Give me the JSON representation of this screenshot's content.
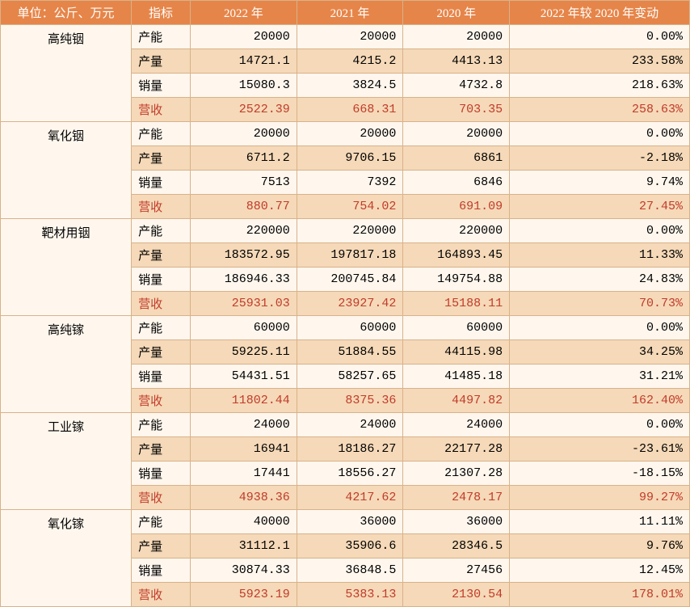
{
  "header": {
    "unit": "单位：公斤、万元",
    "metric": "指标",
    "y2022": "2022 年",
    "y2021": "2021 年",
    "y2020": "2020 年",
    "change": "2022 年较 2020 年变动"
  },
  "metrics": {
    "capacity": "产能",
    "output": "产量",
    "sales": "销量",
    "revenue": "营收"
  },
  "products": [
    {
      "name": "高纯铟",
      "rows": [
        {
          "m": "capacity",
          "v22": "20000",
          "v21": "20000",
          "v20": "20000",
          "chg": "0.00%"
        },
        {
          "m": "output",
          "v22": "14721.1",
          "v21": "4215.2",
          "v20": "4413.13",
          "chg": "233.58%"
        },
        {
          "m": "sales",
          "v22": "15080.3",
          "v21": "3824.5",
          "v20": "4732.8",
          "chg": "218.63%"
        },
        {
          "m": "revenue",
          "v22": "2522.39",
          "v21": "668.31",
          "v20": "703.35",
          "chg": "258.63%"
        }
      ]
    },
    {
      "name": "氧化铟",
      "rows": [
        {
          "m": "capacity",
          "v22": "20000",
          "v21": "20000",
          "v20": "20000",
          "chg": "0.00%"
        },
        {
          "m": "output",
          "v22": "6711.2",
          "v21": "9706.15",
          "v20": "6861",
          "chg": "-2.18%"
        },
        {
          "m": "sales",
          "v22": "7513",
          "v21": "7392",
          "v20": "6846",
          "chg": "9.74%"
        },
        {
          "m": "revenue",
          "v22": "880.77",
          "v21": "754.02",
          "v20": "691.09",
          "chg": "27.45%"
        }
      ]
    },
    {
      "name": "靶材用铟",
      "rows": [
        {
          "m": "capacity",
          "v22": "220000",
          "v21": "220000",
          "v20": "220000",
          "chg": "0.00%"
        },
        {
          "m": "output",
          "v22": "183572.95",
          "v21": "197817.18",
          "v20": "164893.45",
          "chg": "11.33%"
        },
        {
          "m": "sales",
          "v22": "186946.33",
          "v21": "200745.84",
          "v20": "149754.88",
          "chg": "24.83%"
        },
        {
          "m": "revenue",
          "v22": "25931.03",
          "v21": "23927.42",
          "v20": "15188.11",
          "chg": "70.73%"
        }
      ]
    },
    {
      "name": "高纯镓",
      "rows": [
        {
          "m": "capacity",
          "v22": "60000",
          "v21": "60000",
          "v20": "60000",
          "chg": "0.00%"
        },
        {
          "m": "output",
          "v22": "59225.11",
          "v21": "51884.55",
          "v20": "44115.98",
          "chg": "34.25%"
        },
        {
          "m": "sales",
          "v22": "54431.51",
          "v21": "58257.65",
          "v20": "41485.18",
          "chg": "31.21%"
        },
        {
          "m": "revenue",
          "v22": "11802.44",
          "v21": "8375.36",
          "v20": "4497.82",
          "chg": "162.40%"
        }
      ]
    },
    {
      "name": "工业镓",
      "rows": [
        {
          "m": "capacity",
          "v22": "24000",
          "v21": "24000",
          "v20": "24000",
          "chg": "0.00%"
        },
        {
          "m": "output",
          "v22": "16941",
          "v21": "18186.27",
          "v20": "22177.28",
          "chg": "-23.61%"
        },
        {
          "m": "sales",
          "v22": "17441",
          "v21": "18556.27",
          "v20": "21307.28",
          "chg": "-18.15%"
        },
        {
          "m": "revenue",
          "v22": "4938.36",
          "v21": "4217.62",
          "v20": "2478.17",
          "chg": "99.27%"
        }
      ]
    },
    {
      "name": "氧化镓",
      "rows": [
        {
          "m": "capacity",
          "v22": "40000",
          "v21": "36000",
          "v20": "36000",
          "chg": "11.11%"
        },
        {
          "m": "output",
          "v22": "31112.1",
          "v21": "35906.6",
          "v20": "28346.5",
          "chg": "9.76%"
        },
        {
          "m": "sales",
          "v22": "30874.33",
          "v21": "36848.5",
          "v20": "27456",
          "chg": "12.45%"
        },
        {
          "m": "revenue",
          "v22": "5923.19",
          "v21": "5383.13",
          "v20": "2130.54",
          "chg": "178.01%"
        }
      ]
    }
  ],
  "style": {
    "header_bg": "#e68549",
    "header_fg": "#ffffff",
    "band_light": "#fff7ee",
    "band_dark": "#f5d9b8",
    "border": "#d8b28a",
    "revenue_color": "#c23b2a"
  }
}
